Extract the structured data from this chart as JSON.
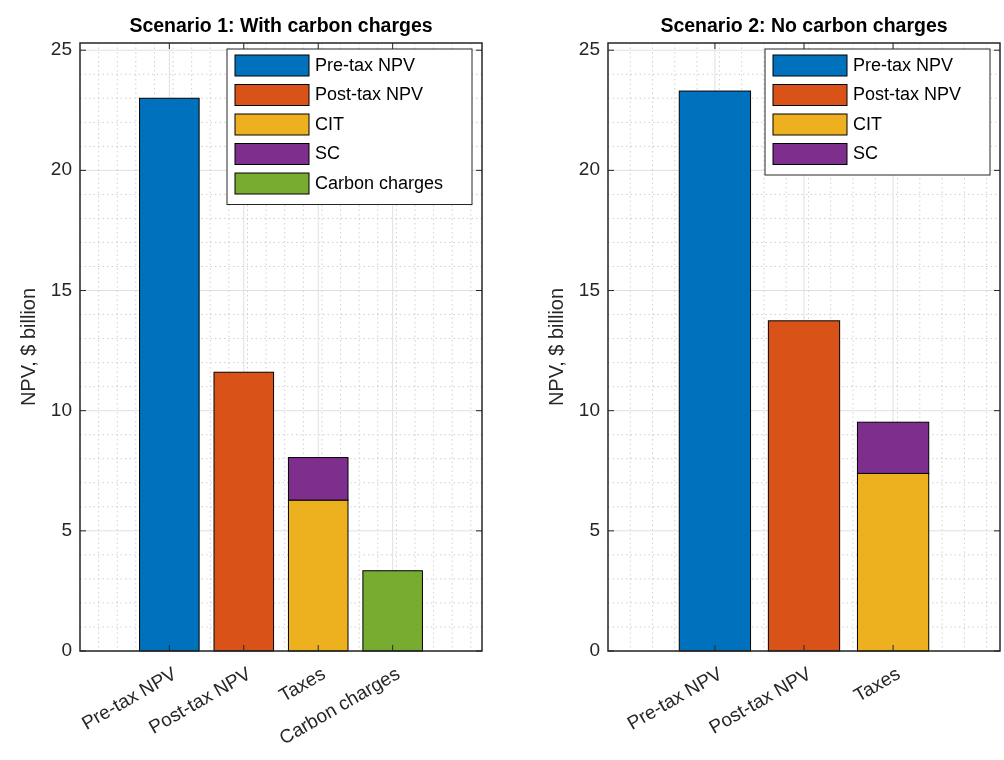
{
  "chart_data": [
    {
      "type": "bar",
      "title": "Scenario 1: With carbon charges",
      "ylabel": "NPV, $ billion",
      "categories": [
        "Pre-tax NPV",
        "Post-tax NPV",
        "Taxes",
        "Carbon charges"
      ],
      "stacked": true,
      "series": [
        {
          "name": "Pre-tax NPV",
          "color": "#0072bd",
          "values": [
            23.0,
            null,
            null,
            null
          ]
        },
        {
          "name": "Post-tax NPV",
          "color": "#d95319",
          "values": [
            null,
            11.6,
            null,
            null
          ]
        },
        {
          "name": "CIT",
          "color": "#edb120",
          "values": [
            null,
            null,
            6.28,
            null
          ]
        },
        {
          "name": "SC",
          "color": "#7e2f8e",
          "values": [
            null,
            null,
            1.77,
            null
          ]
        },
        {
          "name": "Carbon charges",
          "color": "#77ac30",
          "values": [
            null,
            null,
            null,
            3.34
          ]
        }
      ],
      "ylim": [
        0,
        25.3
      ],
      "yticks": [
        0,
        5,
        10,
        15,
        20,
        25
      ],
      "grid": true,
      "legend": "top right"
    },
    {
      "type": "bar",
      "title": "Scenario 2: No carbon charges",
      "ylabel": "NPV, $ billion",
      "categories": [
        "Pre-tax NPV",
        "Post-tax NPV",
        "Taxes"
      ],
      "stacked": true,
      "series": [
        {
          "name": "Pre-tax NPV",
          "color": "#0072bd",
          "values": [
            23.3,
            null,
            null
          ]
        },
        {
          "name": "Post-tax NPV",
          "color": "#d95319",
          "values": [
            null,
            13.74,
            null
          ]
        },
        {
          "name": "CIT",
          "color": "#edb120",
          "values": [
            null,
            null,
            7.39
          ]
        },
        {
          "name": "SC",
          "color": "#7e2f8e",
          "values": [
            null,
            null,
            2.13
          ]
        }
      ],
      "ylim": [
        0,
        25.3
      ],
      "yticks": [
        0,
        5,
        10,
        15,
        20,
        25
      ],
      "grid": true,
      "legend": "top right"
    }
  ]
}
